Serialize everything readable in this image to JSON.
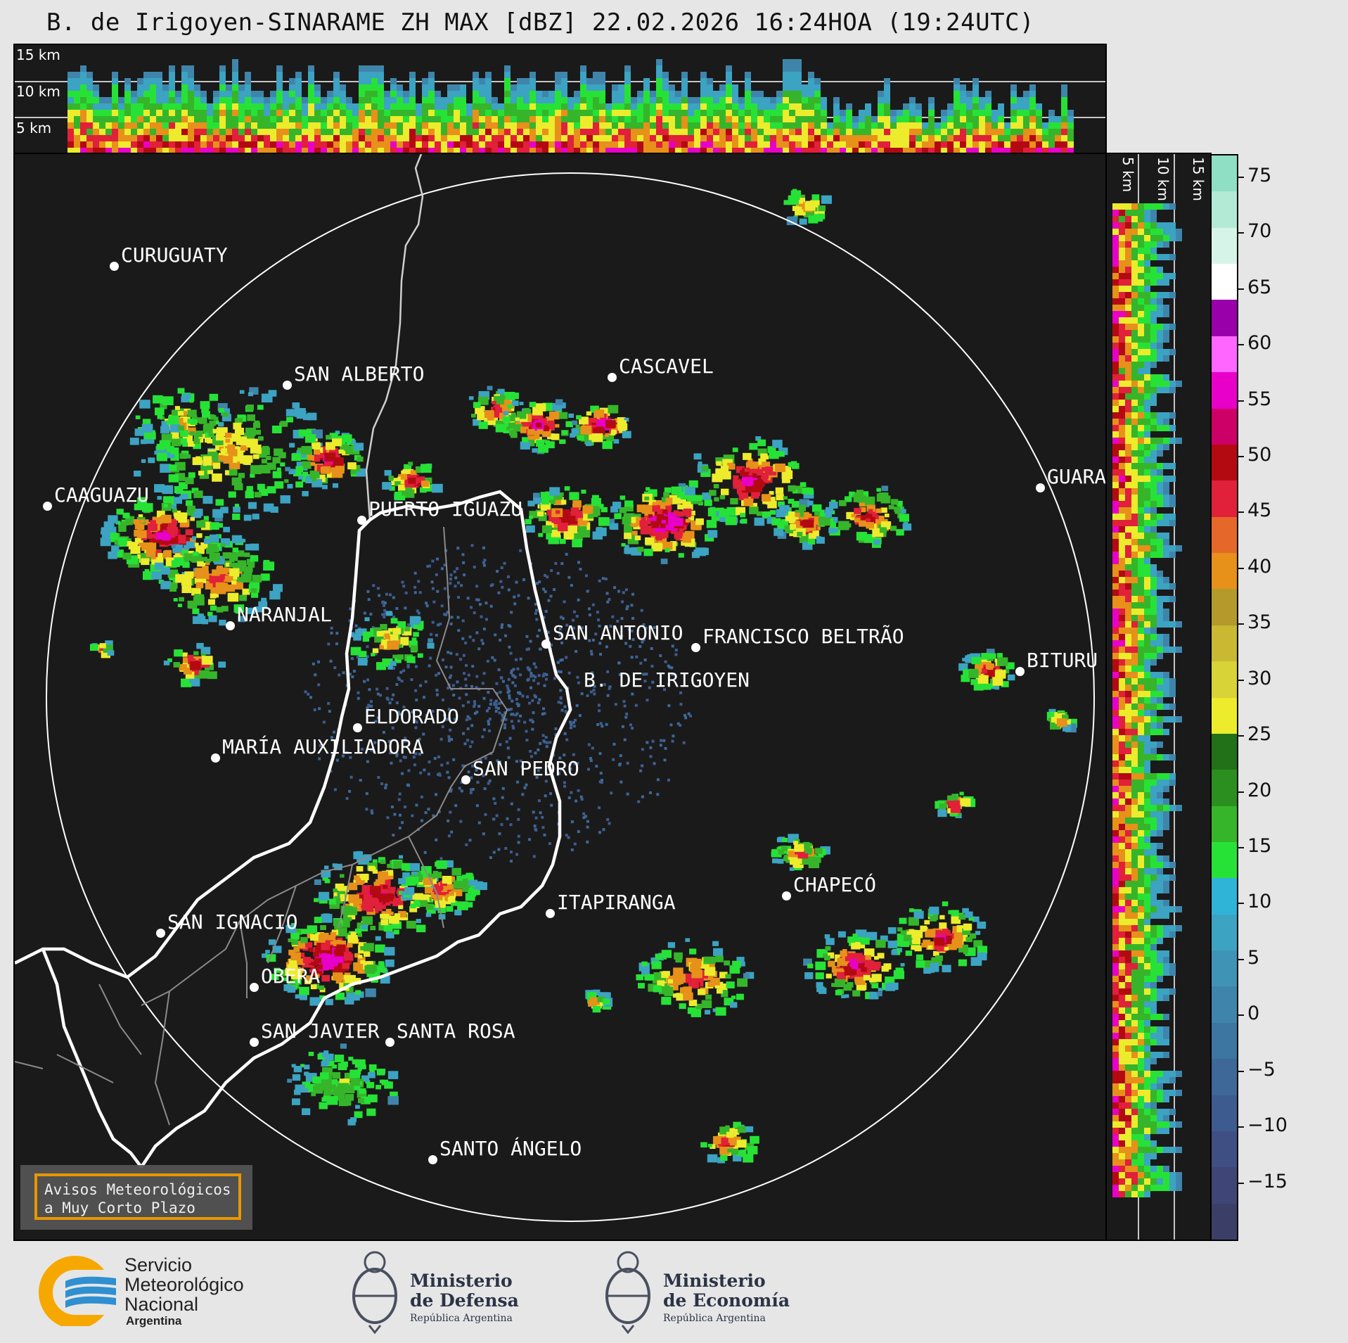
{
  "title": "B. de Irigoyen-SINARAME ZH MAX [dBZ] 22.02.2026 16:24HOA (19:24UTC)",
  "height_labels": [
    "15 km",
    "10 km",
    "5 km"
  ],
  "side_height_labels": [
    "5 km",
    "10 km",
    "15 km"
  ],
  "colorbar": {
    "unit": "dBZ",
    "ticks": [
      "75",
      "70",
      "65",
      "60",
      "55",
      "50",
      "45",
      "40",
      "35",
      "30",
      "25",
      "20",
      "15",
      "10",
      "5",
      "0",
      "−5",
      "−10",
      "−15"
    ],
    "range": [
      -20,
      77
    ],
    "colors": [
      "#3b3f67",
      "#3f4676",
      "#3f4f83",
      "#3e5b8f",
      "#3d6898",
      "#3d76a1",
      "#3f85ab",
      "#3f94b6",
      "#3ca3c2",
      "#2fb4d8",
      "#27e236",
      "#36b52a",
      "#2b8f1f",
      "#227017",
      "#ecec2d",
      "#d8d336",
      "#c8b832",
      "#b39a2b",
      "#e7901a",
      "#e6672a",
      "#e1203a",
      "#b30a12",
      "#cc0066",
      "#e800c8",
      "#ff66ff",
      "#9900aa",
      "#ffffff",
      "#d6f5e8",
      "#b2ead6",
      "#8fdfc4"
    ]
  },
  "cities": [
    {
      "name": "CURUGUATY"
    },
    {
      "name": "SAN ALBERTO"
    },
    {
      "name": "CASCAVEL"
    },
    {
      "name": "CAAGUAZU"
    },
    {
      "name": "GUARA"
    },
    {
      "name": "PUERTO IGUAZU"
    },
    {
      "name": "NARANJAL"
    },
    {
      "name": "SAN ANTONIO"
    },
    {
      "name": "FRANCISCO BELTRÃO"
    },
    {
      "name": "BITURU"
    },
    {
      "name": "B. DE IRIGOYEN"
    },
    {
      "name": "ELDORADO"
    },
    {
      "name": "MARÍA AUXILIADORA"
    },
    {
      "name": "SAN PEDRO"
    },
    {
      "name": "CHAPECÓ"
    },
    {
      "name": "ITAPIRANGA"
    },
    {
      "name": "SAN IGNACIO"
    },
    {
      "name": "OBERA"
    },
    {
      "name": "SAN JAVIER"
    },
    {
      "name": "SANTA ROSA"
    },
    {
      "name": "SANTO ÁNGELO"
    }
  ],
  "warning": {
    "line1": "Avisos Meteorológicos",
    "line2": "a Muy Corto Plazo"
  },
  "logos": {
    "smn": [
      "Servicio",
      "Meteorológico",
      "Nacional",
      "Argentina"
    ],
    "defensa": [
      "Ministerio",
      "de Defensa",
      "República Argentina"
    ],
    "economia": [
      "Ministerio",
      "de Economía",
      "República Argentina"
    ]
  },
  "colors": {
    "background": "#e6e6e6",
    "map": "#1a1a1a",
    "smn_blue": "#2f8fd0",
    "smn_orange": "#f7a800"
  }
}
